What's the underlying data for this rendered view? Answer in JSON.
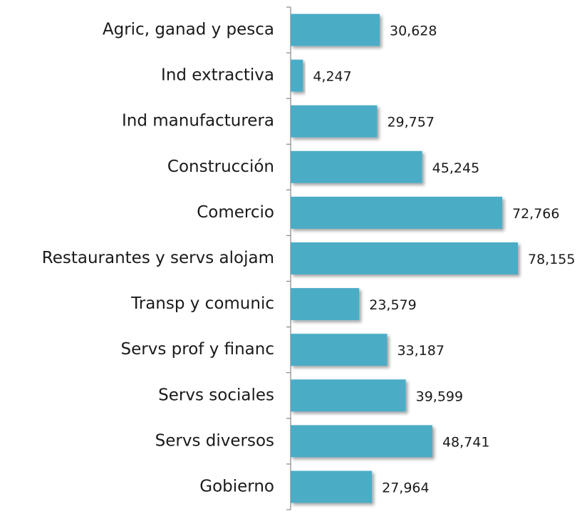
{
  "chart_data": {
    "type": "bar",
    "orientation": "horizontal",
    "color": "#4bacc6",
    "categories": [
      "Agric, ganad y pesca",
      "Ind extractiva",
      "Ind manufacturera",
      "Construcción",
      "Comercio",
      "Restaurantes y servs alojam",
      "Transp y comunic",
      "Servs prof y financ",
      "Servs sociales",
      "Servs diversos",
      "Gobierno"
    ],
    "values": [
      30628,
      4247,
      29757,
      45245,
      72766,
      78155,
      23579,
      33187,
      39599,
      48741,
      27964
    ],
    "value_labels": [
      "30,628",
      "4,247",
      "29,757",
      "45,245",
      "72,766",
      "78,155",
      "23,579",
      "33,187",
      "39,599",
      "48,741",
      "27,964"
    ]
  }
}
